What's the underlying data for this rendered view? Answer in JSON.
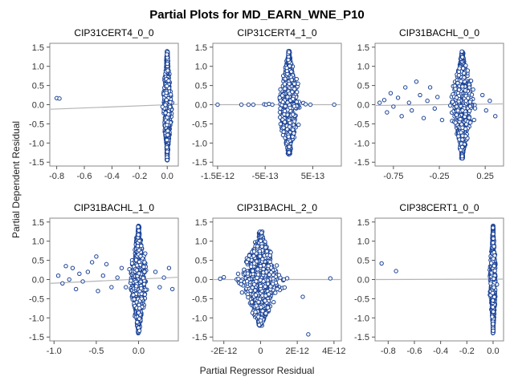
{
  "title": "Partial Plots for MD_EARN_WNE_P10",
  "xlabel": "Partial Regressor Residual",
  "ylabel": "Partial Dependent Residual",
  "colors": {
    "marker": "#1a4296",
    "fit_line": "#b4b4b4",
    "frame": "#888888"
  },
  "chart_data": [
    {
      "type": "scatter",
      "title": "CIP31CERT4_0_0",
      "xlim": [
        -0.85,
        0.08
      ],
      "ylim": [
        -1.6,
        1.6
      ],
      "xticks": [
        -0.8,
        -0.6,
        -0.4,
        -0.2,
        0.0
      ],
      "xtick_labels": [
        "-0.8",
        "-0.6",
        "-0.4",
        "-0.2",
        "0.0"
      ],
      "yticks": [
        -1.5,
        -1.0,
        -0.5,
        0.0,
        0.5,
        1.0,
        1.5
      ],
      "ytick_labels": [
        "-1.5",
        "-1.0",
        "-0.5",
        "0.0",
        "0.5",
        "1.0",
        "1.5"
      ],
      "fit_line": {
        "x": [
          -0.85,
          0.08
        ],
        "y": [
          -0.12,
          0.01
        ]
      },
      "cloud": {
        "x_center": 0.0,
        "x_spread": 0.015,
        "y_extent": [
          -1.45,
          1.4
        ],
        "n": 900
      },
      "points": [
        {
          "x": -0.8,
          "y": 0.17
        },
        {
          "x": -0.78,
          "y": 0.16
        }
      ]
    },
    {
      "type": "scatter",
      "title": "CIP31CERT4_1_0",
      "xlim": [
        -1.6e-12,
        1.1e-12
      ],
      "ylim": [
        -1.6,
        1.6
      ],
      "xticks": [
        -1.5e-12,
        -5e-13,
        5e-13
      ],
      "xtick_labels": [
        "-1.5E-12",
        "-5E-13",
        "5E-13"
      ],
      "yticks": [
        -1.5,
        -1.0,
        -0.5,
        0.0,
        0.5,
        1.0,
        1.5
      ],
      "ytick_labels": [
        "-1.5",
        "-1.0",
        "-0.5",
        "0.0",
        "0.5",
        "1.0",
        "1.5"
      ],
      "fit_line": {
        "x": [
          -1.6e-12,
          1.1e-12
        ],
        "y": [
          0.0,
          0.0
        ]
      },
      "cloud": {
        "x_center": 0.0,
        "x_spread": 1.1e-13,
        "y_extent": [
          -1.3,
          1.4
        ],
        "n": 900
      },
      "points": [
        {
          "x": -1.5e-12,
          "y": 0.0
        },
        {
          "x": -1e-12,
          "y": 0.0
        },
        {
          "x": -8.5e-13,
          "y": 0.0
        },
        {
          "x": -7.5e-13,
          "y": 0.0
        },
        {
          "x": -5.2e-13,
          "y": 0.01
        },
        {
          "x": -4.8e-13,
          "y": 0.0
        },
        {
          "x": -4.2e-13,
          "y": 0.02
        },
        {
          "x": -3.5e-13,
          "y": 0.0
        },
        {
          "x": 3.5e-13,
          "y": 0.01
        },
        {
          "x": 4.5e-13,
          "y": 0.0
        },
        {
          "x": 9.5e-13,
          "y": 0.0
        }
      ]
    },
    {
      "type": "scatter",
      "title": "CIP31BACHL_0_0",
      "xlim": [
        -0.95,
        0.45
      ],
      "ylim": [
        -1.6,
        1.6
      ],
      "xticks": [
        -0.75,
        -0.25,
        0.25
      ],
      "xtick_labels": [
        "-0.75",
        "-0.25",
        "0.25"
      ],
      "yticks": [
        -1.5,
        -1.0,
        -0.5,
        0.0,
        0.5,
        1.0,
        1.5
      ],
      "ytick_labels": [
        "-1.5",
        "-1.0",
        "-0.5",
        "0.0",
        "0.5",
        "1.0",
        "1.5"
      ],
      "fit_line": {
        "x": [
          -0.95,
          0.45
        ],
        "y": [
          -0.02,
          0.02
        ]
      },
      "cloud": {
        "x_center": 0.0,
        "x_spread": 0.06,
        "y_extent": [
          -1.4,
          1.4
        ],
        "n": 900
      },
      "points": [
        {
          "x": -0.9,
          "y": 0.05
        },
        {
          "x": -0.85,
          "y": 0.12
        },
        {
          "x": -0.82,
          "y": -0.2
        },
        {
          "x": -0.78,
          "y": 0.3
        },
        {
          "x": -0.75,
          "y": -0.05
        },
        {
          "x": -0.7,
          "y": 0.18
        },
        {
          "x": -0.66,
          "y": -0.3
        },
        {
          "x": -0.62,
          "y": 0.45
        },
        {
          "x": -0.58,
          "y": 0.05
        },
        {
          "x": -0.55,
          "y": -0.15
        },
        {
          "x": -0.5,
          "y": 0.6
        },
        {
          "x": -0.46,
          "y": 0.25
        },
        {
          "x": -0.42,
          "y": -0.35
        },
        {
          "x": -0.38,
          "y": 0.1
        },
        {
          "x": -0.35,
          "y": 0.45
        },
        {
          "x": -0.3,
          "y": -0.1
        },
        {
          "x": -0.27,
          "y": 0.2
        },
        {
          "x": -0.22,
          "y": -0.4
        },
        {
          "x": 0.22,
          "y": 0.25
        },
        {
          "x": 0.26,
          "y": -0.15
        },
        {
          "x": 0.3,
          "y": 0.1
        },
        {
          "x": 0.36,
          "y": -0.3
        }
      ]
    },
    {
      "type": "scatter",
      "title": "CIP31BACHL_1_0",
      "xlim": [
        -1.05,
        0.47
      ],
      "ylim": [
        -1.6,
        1.6
      ],
      "xticks": [
        -1.0,
        -0.5,
        0.0
      ],
      "xtick_labels": [
        "-1.0",
        "-0.5",
        "0.0"
      ],
      "yticks": [
        -1.5,
        -1.0,
        -0.5,
        0.0,
        0.5,
        1.0,
        1.5
      ],
      "ytick_labels": [
        "-1.5",
        "-1.0",
        "-0.5",
        "0.0",
        "0.5",
        "1.0",
        "1.5"
      ],
      "fit_line": {
        "x": [
          -1.05,
          0.47
        ],
        "y": [
          -0.1,
          0.06
        ]
      },
      "cloud": {
        "x_center": 0.0,
        "x_spread": 0.05,
        "y_extent": [
          -1.4,
          1.4
        ],
        "n": 900
      },
      "points": [
        {
          "x": -0.95,
          "y": 0.1
        },
        {
          "x": -0.9,
          "y": -0.1
        },
        {
          "x": -0.86,
          "y": 0.35
        },
        {
          "x": -0.82,
          "y": 0.0
        },
        {
          "x": -0.78,
          "y": 0.3
        },
        {
          "x": -0.74,
          "y": -0.25
        },
        {
          "x": -0.7,
          "y": 0.15
        },
        {
          "x": -0.66,
          "y": -0.05
        },
        {
          "x": -0.6,
          "y": 0.2
        },
        {
          "x": -0.55,
          "y": 0.45
        },
        {
          "x": -0.5,
          "y": 0.6
        },
        {
          "x": -0.48,
          "y": -0.3
        },
        {
          "x": -0.42,
          "y": 0.1
        },
        {
          "x": -0.38,
          "y": 0.4
        },
        {
          "x": -0.32,
          "y": -0.2
        },
        {
          "x": -0.25,
          "y": 0.05
        },
        {
          "x": -0.2,
          "y": 0.3
        },
        {
          "x": -0.15,
          "y": -0.2
        },
        {
          "x": 0.2,
          "y": 0.2
        },
        {
          "x": 0.25,
          "y": -0.2
        },
        {
          "x": 0.3,
          "y": 0.05
        },
        {
          "x": 0.36,
          "y": 0.3
        },
        {
          "x": 0.4,
          "y": -0.25
        }
      ]
    },
    {
      "type": "scatter",
      "title": "CIP31BACHL_2_0",
      "xlim": [
        -2.6e-12,
        4.4e-12
      ],
      "ylim": [
        -1.6,
        1.6
      ],
      "xticks": [
        -2e-12,
        0,
        2e-12,
        4e-12
      ],
      "xtick_labels": [
        "-2E-12",
        "0",
        "2E-12",
        "4E-12"
      ],
      "yticks": [
        -1.5,
        -1.0,
        -0.5,
        0.0,
        0.5,
        1.0,
        1.5
      ],
      "ytick_labels": [
        "-1.5",
        "-1.0",
        "-0.5",
        "0.0",
        "0.5",
        "1.0",
        "1.5"
      ],
      "fit_line": {
        "x": [
          -2.6e-12,
          4.4e-12
        ],
        "y": [
          0.0,
          0.0
        ]
      },
      "cloud": {
        "x_center": 0.0,
        "x_spread": 5.5e-13,
        "y_extent": [
          -1.2,
          1.25
        ],
        "n": 1300
      },
      "points": [
        {
          "x": -2.2e-12,
          "y": 0.02
        },
        {
          "x": -2e-12,
          "y": 0.06
        },
        {
          "x": 2.3e-12,
          "y": -0.45
        },
        {
          "x": 2.6e-12,
          "y": -1.43
        },
        {
          "x": 3.8e-12,
          "y": 0.03
        }
      ]
    },
    {
      "type": "scatter",
      "title": "CIP38CERT1_0_0",
      "xlim": [
        -0.9,
        0.08
      ],
      "ylim": [
        -1.6,
        1.6
      ],
      "xticks": [
        -0.8,
        -0.6,
        -0.4,
        -0.2,
        0.0
      ],
      "xtick_labels": [
        "-0.8",
        "-0.6",
        "-0.4",
        "-0.2",
        "0.0"
      ],
      "yticks": [
        -1.5,
        -1.0,
        -0.5,
        0.0,
        0.5,
        1.0,
        1.5
      ],
      "ytick_labels": [
        "-1.5",
        "-1.0",
        "-0.5",
        "0.0",
        "0.5",
        "1.0",
        "1.5"
      ],
      "fit_line": {
        "x": [
          -0.9,
          0.08
        ],
        "y": [
          0.0,
          0.01
        ]
      },
      "cloud": {
        "x_center": 0.0,
        "x_spread": 0.012,
        "y_extent": [
          -1.4,
          1.4
        ],
        "n": 900
      },
      "points": [
        {
          "x": -0.85,
          "y": 0.42
        },
        {
          "x": -0.74,
          "y": 0.22
        }
      ]
    }
  ]
}
